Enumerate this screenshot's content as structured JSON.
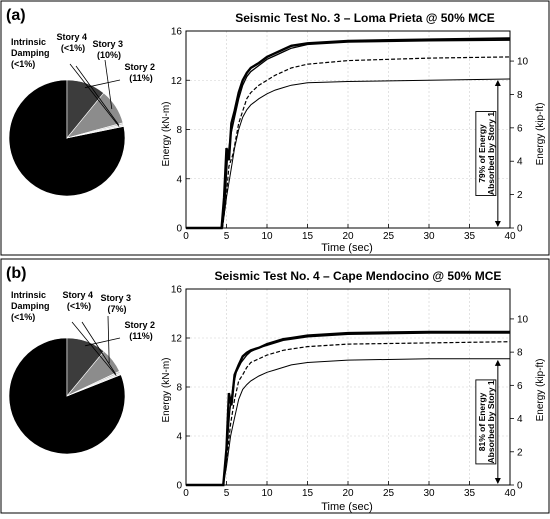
{
  "chart_data": [
    {
      "panel_label": "(a)",
      "pie": {
        "type": "pie",
        "slices": [
          {
            "label": "Story 1",
            "percent_text": "(79%)",
            "value": 79,
            "color": "#000000"
          },
          {
            "label": "Story 2",
            "percent_text": "(11%)",
            "value": 11,
            "color": "#3c3c3c"
          },
          {
            "label": "Story 3",
            "percent_text": "(10%)",
            "value": 10,
            "color": "#8c8c8c"
          },
          {
            "label": "Story 4",
            "percent_text": "(<1%)",
            "value": 0.5,
            "color": "#c8c8c8"
          },
          {
            "label": "Intrinsic Damping",
            "percent_text": "(<1%)",
            "value": 0.5,
            "color": "#e6e6e6"
          }
        ]
      },
      "line": {
        "type": "line",
        "title": "Seismic Test No. 3 – Loma Prieta @ 50% MCE",
        "xlabel": "Time (sec)",
        "ylabel_left": "Energy (kN-m)",
        "ylabel_right": "Energy (kip-ft)",
        "xlim": [
          0,
          40
        ],
        "ylim": [
          0,
          16
        ],
        "xticks": [
          "0",
          "5",
          "10",
          "15",
          "20",
          "25",
          "30",
          "35",
          "40"
        ],
        "yticks_left": [
          "0",
          "4",
          "8",
          "12",
          "16"
        ],
        "yticks_right": [
          "0",
          "2",
          "4",
          "6",
          "8",
          "10"
        ],
        "annotation": [
          "79% of Energy",
          "Absorbed by Story 1"
        ],
        "series": [
          {
            "style": "solid-thick",
            "x": [
              0,
              4.4,
              4.7,
              5.0,
              5.3,
              5.6,
              6.0,
              6.5,
              7.0,
              7.5,
              8.0,
              9.0,
              10.0,
              11.0,
              12.0,
              13.0,
              15.0,
              20.0,
              30.0,
              40.0
            ],
            "y": [
              0,
              0,
              2.5,
              6.5,
              5.5,
              8.5,
              9.5,
              11.0,
              12.0,
              12.6,
              13.0,
              13.4,
              13.9,
              14.2,
              14.5,
              14.8,
              15.0,
              15.2,
              15.3,
              15.4
            ]
          },
          {
            "style": "solid",
            "x": [
              0,
              4.5,
              4.8,
              5.1,
              5.5,
              6.0,
              6.5,
              7.0,
              7.5,
              8.0,
              9.0,
              10.0,
              11.0,
              12.0,
              13.0,
              15.0,
              20.0,
              30.0,
              40.0
            ],
            "y": [
              0,
              0,
              2.0,
              5.5,
              7.5,
              9.0,
              10.5,
              11.6,
              12.3,
              12.7,
              13.2,
              13.7,
              14.0,
              14.3,
              14.6,
              14.9,
              15.1,
              15.2,
              15.25
            ]
          },
          {
            "style": "dashed",
            "x": [
              0,
              4.5,
              4.9,
              5.3,
              5.8,
              6.5,
              7.0,
              7.5,
              8.0,
              9.0,
              10.0,
              11.0,
              12.0,
              13.0,
              15.0,
              20.0,
              30.0,
              40.0
            ],
            "y": [
              0,
              0,
              2.0,
              5.0,
              6.0,
              8.5,
              9.5,
              10.5,
              11.0,
              11.6,
              12.0,
              12.4,
              12.7,
              13.0,
              13.3,
              13.6,
              13.8,
              13.9
            ]
          },
          {
            "style": "solid-thin",
            "x": [
              0,
              4.5,
              5.0,
              5.5,
              6.0,
              6.5,
              7.0,
              7.5,
              8.0,
              9.0,
              10.0,
              11.0,
              12.0,
              13.0,
              15.0,
              20.0,
              30.0,
              40.0
            ],
            "y": [
              0,
              0,
              2.5,
              4.5,
              6.5,
              8.0,
              9.0,
              9.6,
              10.0,
              10.5,
              10.9,
              11.2,
              11.4,
              11.6,
              11.8,
              11.9,
              12.0,
              12.1
            ]
          }
        ]
      }
    },
    {
      "panel_label": "(b)",
      "pie": {
        "type": "pie",
        "slices": [
          {
            "label": "Story 1",
            "percent_text": "(81%)",
            "value": 81,
            "color": "#000000"
          },
          {
            "label": "Story 2",
            "percent_text": "(11%)",
            "value": 11,
            "color": "#3c3c3c"
          },
          {
            "label": "Story 3",
            "percent_text": "(7%)",
            "value": 7,
            "color": "#8c8c8c"
          },
          {
            "label": "Story 4",
            "percent_text": "(<1%)",
            "value": 0.5,
            "color": "#c8c8c8"
          },
          {
            "label": "Intrinsic Damping",
            "percent_text": "(<1%)",
            "value": 0.5,
            "color": "#e6e6e6"
          }
        ]
      },
      "line": {
        "type": "line",
        "title": "Seismic Test No. 4 – Cape Mendocino @ 50% MCE",
        "xlabel": "Time (sec)",
        "ylabel_left": "Energy (kN-m)",
        "ylabel_right": "Energy (kip-ft)",
        "xlim": [
          0,
          40
        ],
        "ylim": [
          0,
          16
        ],
        "xticks": [
          "0",
          "5",
          "10",
          "15",
          "20",
          "25",
          "30",
          "35",
          "40"
        ],
        "yticks_left": [
          "0",
          "4",
          "8",
          "12",
          "16"
        ],
        "yticks_right": [
          "0",
          "2",
          "4",
          "6",
          "8",
          "10"
        ],
        "annotation": [
          "81% of Energy",
          "Absorbed by Story 1"
        ],
        "series": [
          {
            "style": "solid-thick",
            "x": [
              0,
              4.6,
              5.0,
              5.3,
              5.6,
              6.0,
              6.5,
              7.0,
              7.5,
              8.0,
              9.0,
              10.0,
              11.0,
              12.0,
              13.0,
              15.0,
              20.0,
              30.0,
              40.0
            ],
            "y": [
              0,
              0,
              3.0,
              7.5,
              6.5,
              9.0,
              9.8,
              10.5,
              10.8,
              11.0,
              11.2,
              11.5,
              11.7,
              11.9,
              12.0,
              12.2,
              12.4,
              12.5,
              12.5
            ]
          },
          {
            "style": "solid",
            "x": [
              0,
              4.6,
              5.0,
              5.4,
              5.8,
              6.2,
              6.8,
              7.5,
              8.0,
              9.0,
              10.0,
              11.0,
              12.0,
              13.0,
              15.0,
              20.0,
              30.0,
              40.0
            ],
            "y": [
              0,
              0,
              2.5,
              6.0,
              8.0,
              9.2,
              10.0,
              10.6,
              10.9,
              11.2,
              11.4,
              11.6,
              11.8,
              11.9,
              12.1,
              12.3,
              12.4,
              12.4
            ]
          },
          {
            "style": "dashed",
            "x": [
              0,
              4.6,
              5.0,
              5.5,
              6.0,
              6.5,
              7.0,
              7.5,
              8.0,
              9.0,
              10.0,
              11.0,
              12.0,
              13.0,
              15.0,
              20.0,
              30.0,
              40.0
            ],
            "y": [
              0,
              0,
              2.0,
              5.0,
              7.0,
              8.5,
              9.0,
              9.6,
              10.0,
              10.3,
              10.6,
              10.8,
              11.0,
              11.1,
              11.3,
              11.5,
              11.6,
              11.7
            ]
          },
          {
            "style": "solid-thin",
            "x": [
              0,
              4.6,
              5.0,
              5.5,
              6.0,
              6.5,
              7.0,
              7.5,
              8.0,
              9.0,
              10.0,
              11.0,
              12.0,
              13.0,
              15.0,
              20.0,
              30.0,
              40.0
            ],
            "y": [
              0,
              0,
              1.5,
              4.0,
              5.5,
              7.0,
              7.8,
              8.2,
              8.5,
              8.9,
              9.2,
              9.4,
              9.6,
              9.8,
              10.0,
              10.2,
              10.3,
              10.3
            ]
          }
        ]
      }
    }
  ]
}
